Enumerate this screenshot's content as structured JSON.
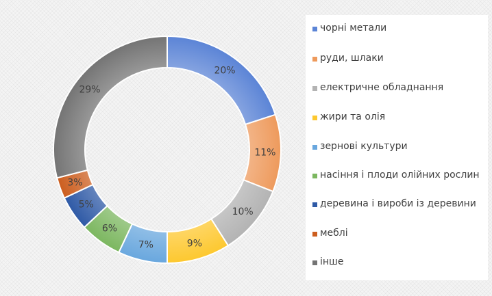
{
  "chart_data": {
    "type": "pie",
    "donut": true,
    "categories": [
      "чорні метали",
      "руди, шлаки",
      "електричне обладнання",
      "жири та олія",
      "зернові культури",
      "насіння і плоди олійних рослин",
      "деревина і вироби із деревини",
      "меблі",
      "інше"
    ],
    "values": [
      20,
      11,
      10,
      9,
      7,
      6,
      5,
      3,
      29
    ],
    "labels": [
      "20%",
      "11%",
      "10%",
      "9%",
      "7%",
      "6%",
      "5%",
      "3%",
      "29%"
    ],
    "colors": [
      "#5b84d6",
      "#ee9a5c",
      "#b3b3b3",
      "#fdc82f",
      "#69a7de",
      "#7cb760",
      "#2f5aa6",
      "#cc5e1f",
      "#747474"
    ],
    "legend_position": "right"
  }
}
